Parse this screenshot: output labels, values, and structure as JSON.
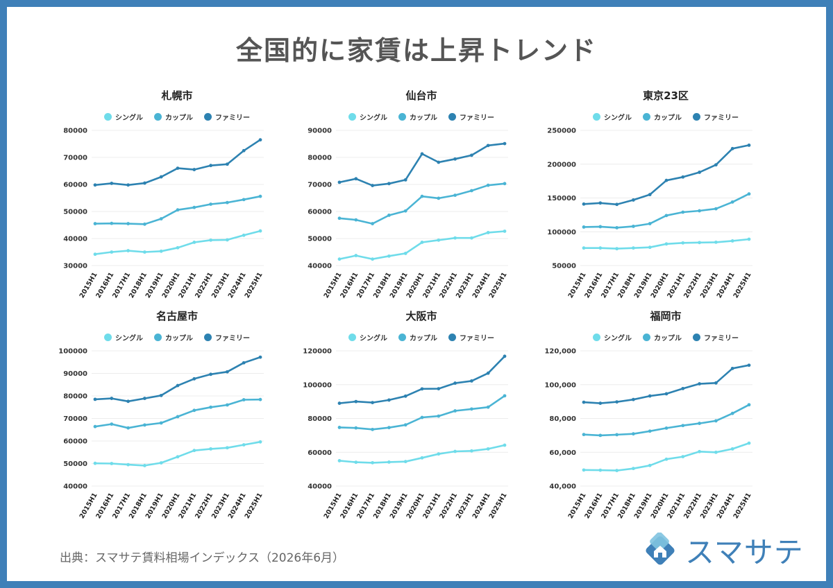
{
  "title": "全国的に家賃は上昇トレンド",
  "source": "出典：スマサテ賃料相場インデックス（2026年6月）",
  "logo": {
    "text": "スマサテ",
    "icon": "house-diamond-icon",
    "color": "#3f80b8"
  },
  "legend_labels": [
    "シングル",
    "カップル",
    "ファミリー"
  ],
  "series_colors": [
    "#6fdcea",
    "#4ab4d4",
    "#2d82b1"
  ],
  "chart_data": [
    {
      "type": "line",
      "title": "札幌市",
      "x": [
        "2015H1",
        "2016H1",
        "2017H1",
        "2018H1",
        "2019H1",
        "2020H1",
        "2021H1",
        "2022H1",
        "2023H1",
        "2024H1",
        "2025H1"
      ],
      "series": [
        {
          "name": "シングル",
          "values": [
            34200,
            35000,
            35500,
            35000,
            35300,
            36600,
            38600,
            39400,
            39500,
            41200,
            42800
          ]
        },
        {
          "name": "カップル",
          "values": [
            45500,
            45600,
            45500,
            45300,
            47300,
            50600,
            51500,
            52700,
            53300,
            54400,
            55600
          ]
        },
        {
          "name": "ファミリー",
          "values": [
            59800,
            60400,
            59800,
            60500,
            62800,
            66000,
            65500,
            67000,
            67500,
            72500,
            76500
          ]
        }
      ],
      "ylim": [
        30000,
        80000
      ],
      "yticks": [
        30000,
        40000,
        50000,
        60000,
        70000,
        80000
      ],
      "ytick_labels": [
        "30000",
        "40000",
        "50000",
        "60000",
        "70000",
        "80000"
      ]
    },
    {
      "type": "line",
      "title": "仙台市",
      "x": [
        "2015H1",
        "2016H1",
        "2017H1",
        "2018H1",
        "2019H1",
        "2020H1",
        "2021H1",
        "2022H1",
        "2023H1",
        "2024H1",
        "2025H1"
      ],
      "series": [
        {
          "name": "シングル",
          "values": [
            42400,
            43700,
            42400,
            43500,
            44500,
            48600,
            49400,
            50200,
            50200,
            52200,
            52700
          ]
        },
        {
          "name": "カップル",
          "values": [
            57500,
            56900,
            55500,
            58600,
            60200,
            65600,
            64900,
            66000,
            67700,
            69700,
            70300
          ]
        },
        {
          "name": "ファミリー",
          "values": [
            70800,
            72100,
            69600,
            70300,
            71700,
            81300,
            78200,
            79400,
            80800,
            84400,
            85100
          ]
        }
      ],
      "ylim": [
        40000,
        90000
      ],
      "yticks": [
        40000,
        50000,
        60000,
        70000,
        80000,
        90000
      ],
      "ytick_labels": [
        "40000",
        "50000",
        "60000",
        "70000",
        "80000",
        "90000"
      ]
    },
    {
      "type": "line",
      "title": "東京23区",
      "x": [
        "2015H1",
        "2016H1",
        "2017H1",
        "2018H1",
        "2019H1",
        "2020H1",
        "2021H1",
        "2022H1",
        "2023H1",
        "2024H1",
        "2025H1"
      ],
      "series": [
        {
          "name": "シングル",
          "values": [
            76000,
            76000,
            75000,
            76000,
            77000,
            82000,
            83500,
            84000,
            84500,
            86500,
            89000
          ]
        },
        {
          "name": "カップル",
          "values": [
            107000,
            107500,
            106000,
            108000,
            112000,
            124000,
            129000,
            131000,
            134000,
            144000,
            156000
          ]
        },
        {
          "name": "ファミリー",
          "values": [
            141000,
            142500,
            140500,
            147000,
            155000,
            176000,
            181000,
            188000,
            199000,
            223000,
            228000
          ]
        }
      ],
      "ylim": [
        50000,
        250000
      ],
      "yticks": [
        50000,
        100000,
        150000,
        200000,
        250000
      ],
      "ytick_labels": [
        "50000",
        "100000",
        "150000",
        "200000",
        "250000"
      ]
    },
    {
      "type": "line",
      "title": "名古屋市",
      "x": [
        "2015H1",
        "2016H1",
        "2017H1",
        "2018H1",
        "2019H1",
        "2020H1",
        "2021H1",
        "2022H1",
        "2023H1",
        "2024H1",
        "2025H1"
      ],
      "series": [
        {
          "name": "シングル",
          "values": [
            50100,
            50000,
            49500,
            49100,
            50300,
            53000,
            55800,
            56500,
            57000,
            58300,
            59600
          ]
        },
        {
          "name": "カップル",
          "values": [
            66400,
            67500,
            65800,
            67100,
            68000,
            70800,
            73600,
            75000,
            76000,
            78300,
            78400
          ]
        },
        {
          "name": "ファミリー",
          "values": [
            78500,
            78900,
            77600,
            78900,
            80200,
            84600,
            87600,
            89600,
            90700,
            94700,
            97200
          ]
        }
      ],
      "ylim": [
        40000,
        100000
      ],
      "yticks": [
        40000,
        50000,
        60000,
        70000,
        80000,
        90000,
        100000
      ],
      "ytick_labels": [
        "40000",
        "50000",
        "60000",
        "70000",
        "80000",
        "90000",
        "100000"
      ]
    },
    {
      "type": "line",
      "title": "大阪市",
      "x": [
        "2015H1",
        "2016H1",
        "2017H1",
        "2018H1",
        "2019H1",
        "2020H1",
        "2021H1",
        "2022H1",
        "2023H1",
        "2024H1",
        "2025H1"
      ],
      "series": [
        {
          "name": "シングル",
          "values": [
            55000,
            54100,
            53800,
            54200,
            54500,
            56700,
            59000,
            60500,
            60800,
            62000,
            64200
          ]
        },
        {
          "name": "カップル",
          "values": [
            74700,
            74400,
            73500,
            74600,
            76200,
            80600,
            81400,
            84500,
            85600,
            86700,
            93400
          ]
        },
        {
          "name": "ファミリー",
          "values": [
            89000,
            90000,
            89400,
            90900,
            93200,
            97500,
            97600,
            100900,
            102200,
            106800,
            116800
          ]
        }
      ],
      "ylim": [
        40000,
        120000
      ],
      "yticks": [
        40000,
        60000,
        80000,
        100000,
        120000
      ],
      "ytick_labels": [
        "40000",
        "60000",
        "80000",
        "100000",
        "120000"
      ]
    },
    {
      "type": "line",
      "title": "福岡市",
      "x": [
        "2015H1",
        "2016H1",
        "2017H1",
        "2018H1",
        "2019H1",
        "2020H1",
        "2021H1",
        "2022H1",
        "2023H1",
        "2024H1",
        "2025H1"
      ],
      "series": [
        {
          "name": "シングル",
          "values": [
            49500,
            49400,
            49200,
            50400,
            52200,
            55900,
            57400,
            60400,
            60000,
            62000,
            65400
          ]
        },
        {
          "name": "カップル",
          "values": [
            70500,
            70000,
            70400,
            70900,
            72500,
            74300,
            75800,
            77100,
            78600,
            83000,
            88100
          ]
        },
        {
          "name": "ファミリー",
          "values": [
            89600,
            89000,
            89800,
            91200,
            93300,
            94600,
            97700,
            100500,
            101000,
            109600,
            111500
          ]
        }
      ],
      "ylim": [
        40000,
        120000
      ],
      "yticks": [
        40000,
        60000,
        80000,
        100000,
        120000
      ],
      "ytick_labels": [
        "40,000",
        "60,000",
        "80,000",
        "100,000",
        "120,000"
      ]
    }
  ]
}
